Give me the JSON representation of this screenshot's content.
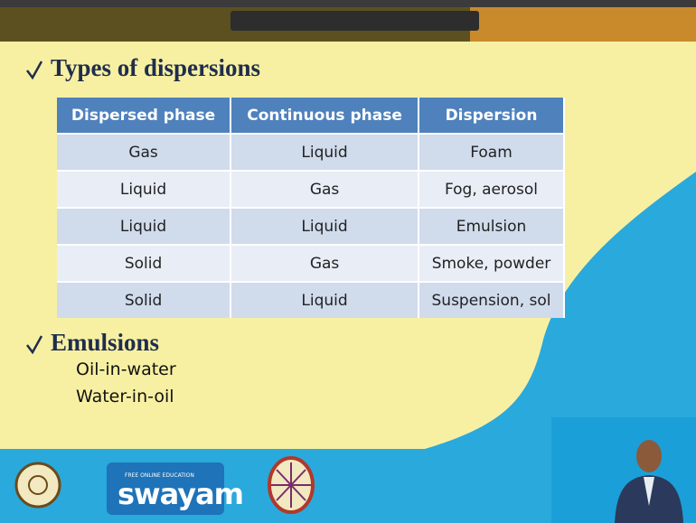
{
  "heading": "Types of dispersions",
  "table": {
    "header": [
      "Dispersed phase",
      "Continuous phase",
      "Dispersion"
    ],
    "rows": [
      [
        "Gas",
        "Liquid",
        "Foam"
      ],
      [
        "Liquid",
        "Gas",
        "Fog, aerosol"
      ],
      [
        "Liquid",
        "Liquid",
        "Emulsion"
      ],
      [
        "Solid",
        "Gas",
        "Smoke, powder"
      ],
      [
        "Solid",
        "Liquid",
        "Suspension, sol"
      ]
    ]
  },
  "section": {
    "title": "Emulsions",
    "items": [
      "Oil-in-water",
      "Water-in-oil"
    ]
  },
  "logo": {
    "tagline": "FREE ONLINE EDUCATION",
    "name": "swayam"
  }
}
